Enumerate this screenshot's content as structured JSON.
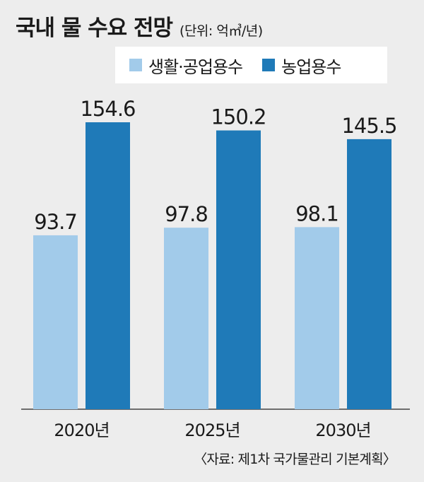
{
  "header": {
    "title": "국내 물 수요 전망",
    "unit": "(단위: 억㎥/년)"
  },
  "legend": [
    {
      "label": "생활·공업용수",
      "color": "#a2cbea"
    },
    {
      "label": "농업용수",
      "color": "#1f7ab8"
    }
  ],
  "chart_data": {
    "type": "bar",
    "categories": [
      "2020년",
      "2025년",
      "2030년"
    ],
    "series": [
      {
        "name": "생활·공업용수",
        "values": [
          93.7,
          97.8,
          98.1
        ],
        "labels": [
          "93.7",
          "97.8",
          "98.1"
        ],
        "color": "#a2cbea"
      },
      {
        "name": "농업용수",
        "values": [
          154.6,
          150.2,
          145.5
        ],
        "labels": [
          "154.6",
          "150.2",
          "145.5"
        ],
        "color": "#1f7ab8"
      }
    ],
    "ylim": [
      0,
      154.6
    ],
    "grid": false,
    "legend_position": "top-right"
  },
  "source": "〈자료: 제1차 국가물관리 기본계획〉"
}
